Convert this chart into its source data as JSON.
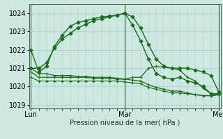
{
  "title": "Pression niveau de la mer( hPa )",
  "bg_color": "#cce8e0",
  "grid_color": "#aacccc",
  "line_color": "#1a6b1a",
  "ylim": [
    1018.8,
    1024.5
  ],
  "yticks": [
    1019,
    1020,
    1021,
    1022,
    1023,
    1024
  ],
  "xlim": [
    -1,
    97
  ],
  "xtick_pos": [
    0,
    48,
    96
  ],
  "xtick_labels": [
    "Lun",
    "Mar",
    "Mer"
  ],
  "series": [
    {
      "x": [
        0,
        4,
        8,
        12,
        16,
        20,
        24,
        28,
        32,
        36,
        40,
        44,
        48,
        52,
        56,
        60,
        64,
        68,
        72,
        76,
        80,
        84,
        88,
        92,
        96
      ],
      "y": [
        1022.0,
        1020.8,
        1021.1,
        1022.2,
        1022.8,
        1023.3,
        1023.5,
        1023.6,
        1023.7,
        1023.8,
        1023.85,
        1023.9,
        1024.0,
        1023.35,
        1022.5,
        1021.5,
        1020.7,
        1020.5,
        1020.4,
        1020.5,
        1020.3,
        1020.2,
        1020.0,
        1019.6,
        1019.6
      ],
      "marker": "D",
      "markersize": 2.5,
      "linewidth": 1.0
    },
    {
      "x": [
        0,
        4,
        8,
        12,
        16,
        20,
        24,
        28,
        32,
        36,
        40,
        44,
        48,
        52,
        56,
        60,
        64,
        68,
        72,
        76,
        80,
        84,
        88,
        92,
        96
      ],
      "y": [
        1021.0,
        1021.0,
        1021.3,
        1022.1,
        1022.6,
        1022.9,
        1023.2,
        1023.4,
        1023.6,
        1023.7,
        1023.8,
        1023.9,
        1024.0,
        1023.8,
        1023.2,
        1022.3,
        1021.5,
        1021.1,
        1021.0,
        1021.0,
        1021.0,
        1020.9,
        1020.8,
        1020.6,
        1019.7
      ],
      "marker": "D",
      "markersize": 2.5,
      "linewidth": 1.0
    },
    {
      "x": [
        0,
        4,
        8,
        12,
        16,
        20,
        24,
        28,
        32,
        36,
        40,
        44,
        48,
        52,
        56,
        60,
        64,
        68,
        72,
        76,
        80,
        84,
        88,
        92,
        96
      ],
      "y": [
        1020.8,
        1020.5,
        1020.5,
        1020.5,
        1020.5,
        1020.5,
        1020.5,
        1020.5,
        1020.45,
        1020.45,
        1020.45,
        1020.4,
        1020.4,
        1020.5,
        1020.5,
        1021.0,
        1021.1,
        1021.05,
        1021.0,
        1020.9,
        1020.5,
        1020.3,
        1019.9,
        1019.6,
        1019.6
      ],
      "marker": "+",
      "markersize": 3.5,
      "linewidth": 0.9
    },
    {
      "x": [
        0,
        4,
        8,
        12,
        16,
        20,
        24,
        28,
        32,
        36,
        40,
        44,
        48,
        52,
        56,
        60,
        64,
        68,
        72,
        76,
        80,
        84,
        88,
        92,
        96
      ],
      "y": [
        1021.0,
        1020.7,
        1020.7,
        1020.6,
        1020.6,
        1020.6,
        1020.55,
        1020.55,
        1020.5,
        1020.5,
        1020.5,
        1020.45,
        1020.4,
        1020.35,
        1020.3,
        1020.1,
        1019.95,
        1019.85,
        1019.75,
        1019.75,
        1019.65,
        1019.55,
        1019.5,
        1019.5,
        1019.55
      ],
      "marker": "+",
      "markersize": 3.5,
      "linewidth": 0.9
    },
    {
      "x": [
        0,
        4,
        8,
        12,
        16,
        20,
        24,
        28,
        32,
        36,
        40,
        44,
        48,
        52,
        56,
        60,
        64,
        68,
        72,
        76,
        80,
        84,
        88,
        92,
        96
      ],
      "y": [
        1020.5,
        1020.3,
        1020.3,
        1020.3,
        1020.3,
        1020.3,
        1020.3,
        1020.3,
        1020.3,
        1020.3,
        1020.3,
        1020.3,
        1020.25,
        1020.2,
        1020.15,
        1019.95,
        1019.85,
        1019.75,
        1019.65,
        1019.65,
        1019.6,
        1019.55,
        1019.5,
        1019.5,
        1019.55
      ],
      "marker": "+",
      "markersize": 3.5,
      "linewidth": 0.8
    }
  ],
  "vlines": [
    0,
    48,
    96
  ],
  "font_size": 7,
  "tick_labelsize": 7
}
